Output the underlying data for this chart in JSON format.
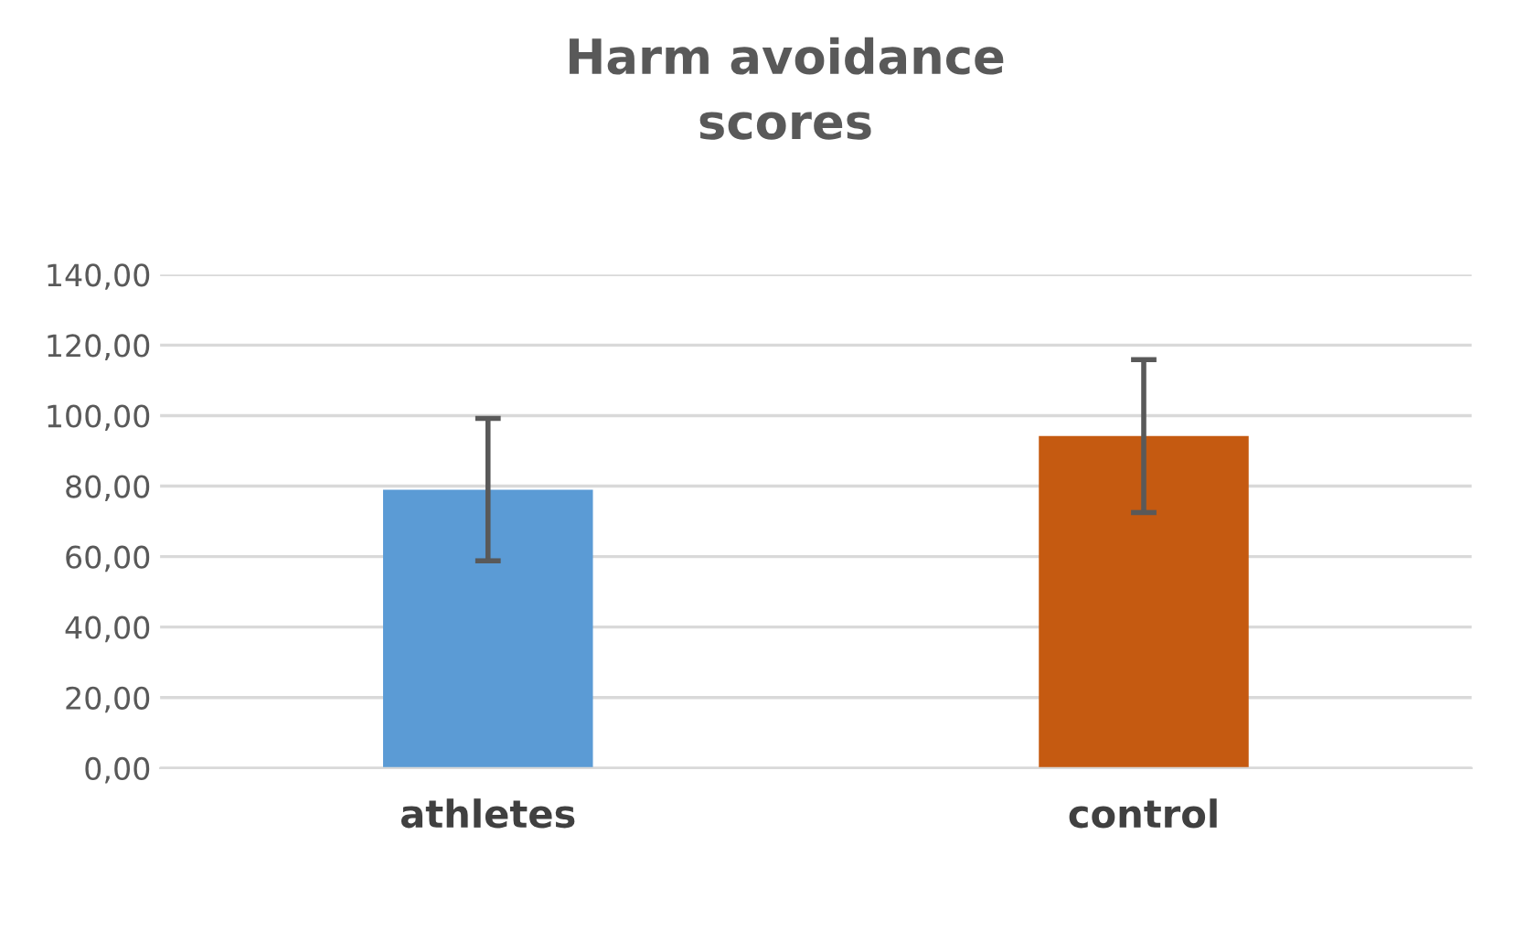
{
  "chart_data": {
    "type": "bar",
    "title": "Harm avoidance\nscores",
    "categories": [
      "athletes",
      "control"
    ],
    "values": [
      79,
      94.2
    ],
    "colors": [
      "#5b9bd5",
      "#c55a11"
    ],
    "errors": [
      20.2,
      21.7
    ],
    "ylim": [
      0,
      140
    ],
    "yticks": [
      {
        "value": 0,
        "label": "0,00"
      },
      {
        "value": 20,
        "label": "20,00"
      },
      {
        "value": 40,
        "label": "40,00"
      },
      {
        "value": 60,
        "label": "60,00"
      },
      {
        "value": 80,
        "label": "80,00"
      },
      {
        "value": 100,
        "label": "100,00"
      },
      {
        "value": 120,
        "label": "120,00"
      },
      {
        "value": 140,
        "label": "140,00"
      }
    ],
    "grid": "y",
    "legend": false
  }
}
